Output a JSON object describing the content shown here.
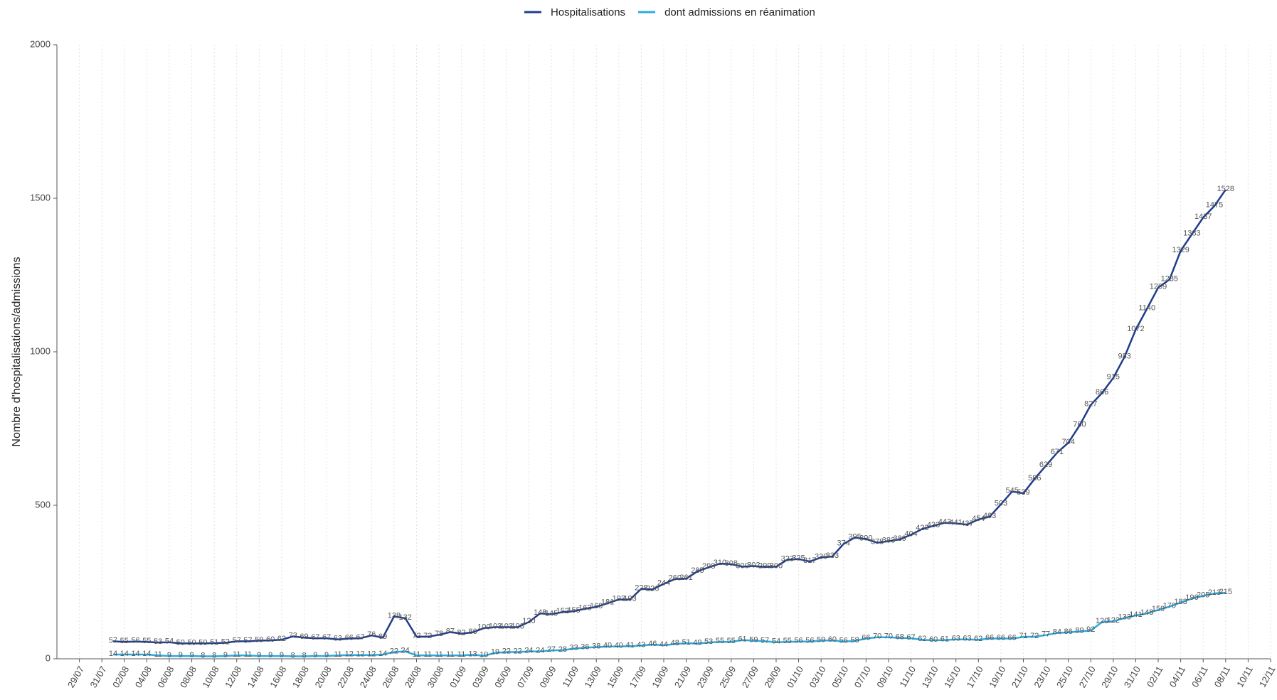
{
  "chart_data": {
    "type": "line",
    "y_label": "Nombre d'hospitalisations/admissions",
    "x": [
      "01/08",
      "02/08",
      "03/08",
      "04/08",
      "05/08",
      "06/08",
      "07/08",
      "08/08",
      "09/08",
      "10/08",
      "11/08",
      "12/08",
      "13/08",
      "14/08",
      "15/08",
      "16/08",
      "17/08",
      "18/08",
      "19/08",
      "20/08",
      "21/08",
      "22/08",
      "23/08",
      "24/08",
      "25/08",
      "26/08",
      "27/08",
      "28/08",
      "29/08",
      "30/08",
      "31/08",
      "01/09",
      "02/09",
      "03/09",
      "04/09",
      "05/09",
      "06/09",
      "07/09",
      "08/09",
      "09/09",
      "10/09",
      "11/09",
      "12/09",
      "13/09",
      "14/09",
      "15/09",
      "16/09",
      "17/09",
      "18/09",
      "19/09",
      "20/09",
      "21/09",
      "22/09",
      "23/09",
      "24/09",
      "25/09",
      "26/09",
      "27/09",
      "28/09",
      "29/09",
      "30/09",
      "01/10",
      "02/10",
      "03/10",
      "04/10",
      "05/10",
      "06/10",
      "07/10",
      "08/10",
      "09/10",
      "10/10",
      "11/10",
      "12/10",
      "13/10",
      "14/10",
      "15/10",
      "16/10",
      "17/10",
      "18/10",
      "19/10",
      "20/10",
      "21/10",
      "22/10",
      "23/10",
      "24/10",
      "25/10",
      "26/10",
      "27/10",
      "28/10",
      "29/10",
      "30/10",
      "31/10",
      "01/11",
      "02/11",
      "03/11",
      "04/11",
      "05/11",
      "06/11",
      "07/11",
      "08/11"
    ],
    "series": [
      {
        "name": "Hospitalisations",
        "color": "#1f3d8c",
        "values": [
          57,
          55,
          56,
          55,
          53,
          54,
          50,
          50,
          50,
          51,
          52,
          57,
          57,
          59,
          60,
          62,
          73,
          69,
          67,
          67,
          63,
          66,
          67,
          76,
          69,
          138,
          132,
          72,
          72,
          78,
          87,
          82,
          86,
          100,
          103,
          103,
          103,
          120,
          148,
          145,
          152,
          155,
          163,
          169,
          181,
          193,
          193,
          228,
          226,
          244,
          260,
          261,
          285,
          298,
          310,
          308,
          300,
          302,
          299,
          300,
          323,
          325,
          317,
          330,
          333,
          374,
          395,
          390,
          378,
          383,
          389,
          404,
          423,
          433,
          443,
          441,
          437,
          454,
          463,
          503,
          545,
          539,
          586,
          629,
          671,
          704,
          760,
          827,
          866,
          915,
          983,
          1072,
          1140,
          1209,
          1235,
          1329,
          1383,
          1437,
          1475,
          1528
        ]
      },
      {
        "name": "dont admissions en réanimation",
        "color": "#29abe2",
        "values": [
          14,
          14,
          14,
          14,
          11,
          9,
          9,
          9,
          8,
          8,
          9,
          11,
          11,
          9,
          9,
          9,
          8,
          8,
          9,
          9,
          11,
          12,
          12,
          12,
          14,
          22,
          24,
          11,
          11,
          11,
          11,
          11,
          13,
          10,
          19,
          22,
          22,
          24,
          24,
          27,
          28,
          33,
          36,
          38,
          40,
          40,
          41,
          43,
          46,
          44,
          48,
          51,
          49,
          53,
          55,
          55,
          61,
          59,
          57,
          54,
          55,
          56,
          56,
          59,
          60,
          56,
          58,
          66,
          70,
          70,
          68,
          67,
          62,
          60,
          61,
          63,
          63,
          62,
          66,
          66,
          66,
          71,
          72,
          77,
          84,
          86,
          89,
          92,
          120,
          122,
          133,
          141,
          148,
          159,
          170,
          183,
          196,
          205,
          213,
          215
        ]
      }
    ],
    "xlim": [
      "27/07",
      "12/11"
    ],
    "xticks": [
      "29/07",
      "31/07",
      "02/08",
      "04/08",
      "06/08",
      "08/08",
      "10/08",
      "12/08",
      "14/08",
      "16/08",
      "18/08",
      "20/08",
      "22/08",
      "24/08",
      "26/08",
      "28/08",
      "30/08",
      "01/09",
      "03/09",
      "05/09",
      "07/09",
      "09/09",
      "11/09",
      "13/09",
      "15/09",
      "17/09",
      "19/09",
      "21/09",
      "23/09",
      "25/09",
      "27/09",
      "29/09",
      "01/10",
      "03/10",
      "05/10",
      "07/10",
      "09/10",
      "11/10",
      "13/10",
      "15/10",
      "17/10",
      "19/10",
      "21/10",
      "23/10",
      "25/10",
      "27/10",
      "29/10",
      "31/10",
      "02/11",
      "04/11",
      "06/11",
      "08/11",
      "10/11",
      "12/11"
    ],
    "ylim": [
      0,
      2000
    ],
    "yticks": [
      0,
      500,
      1000,
      1500,
      2000
    ],
    "grid": true,
    "legend": "top"
  }
}
